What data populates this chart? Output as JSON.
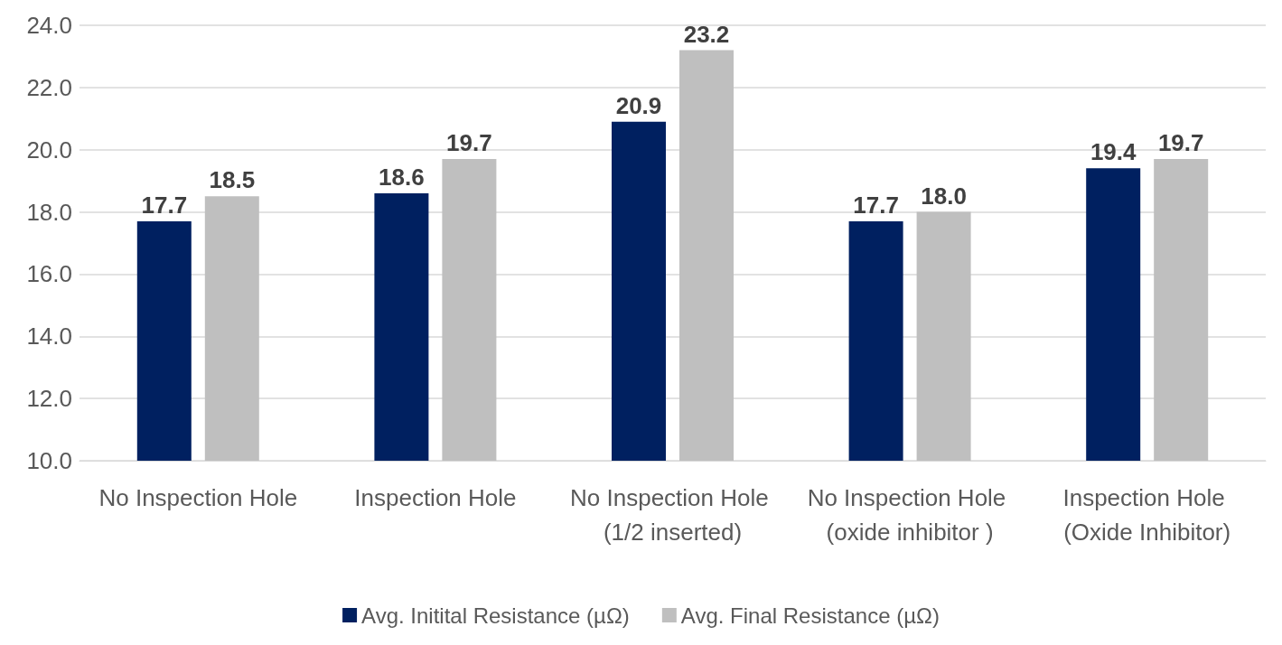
{
  "chart_data": {
    "type": "bar",
    "categories": [
      "No Inspection Hole",
      "Inspection Hole",
      "No Inspection Hole (1/2 inserted)",
      "No Inspection Hole (oxide inhibitor )",
      "Inspection Hole (Oxide Inhibitor)"
    ],
    "series": [
      {
        "name": "Avg. Initital Resistance (µΩ)",
        "color": "#002060",
        "values": [
          17.7,
          18.6,
          20.9,
          17.7,
          19.4
        ],
        "value_labels": [
          "17.7",
          "18.6",
          "20.9",
          "17.7",
          "19.4"
        ]
      },
      {
        "name": "Avg. Final Resistance (µΩ)",
        "color": "#bfbfbf",
        "values": [
          18.5,
          19.7,
          23.2,
          18.0,
          19.7
        ],
        "value_labels": [
          "18.5",
          "19.7",
          "23.2",
          "18.0",
          "19.7"
        ]
      }
    ],
    "ylim": [
      10,
      24
    ],
    "yticks": [
      {
        "value": 10,
        "label": "10.0"
      },
      {
        "value": 12,
        "label": "12.0"
      },
      {
        "value": 14,
        "label": "14.0"
      },
      {
        "value": 16,
        "label": "16.0"
      },
      {
        "value": 18,
        "label": "18.0"
      },
      {
        "value": 20,
        "label": "20.0"
      },
      {
        "value": 22,
        "label": "22.0"
      },
      {
        "value": 24,
        "label": "24.0"
      }
    ],
    "grid": "y",
    "legend": "bottom"
  }
}
